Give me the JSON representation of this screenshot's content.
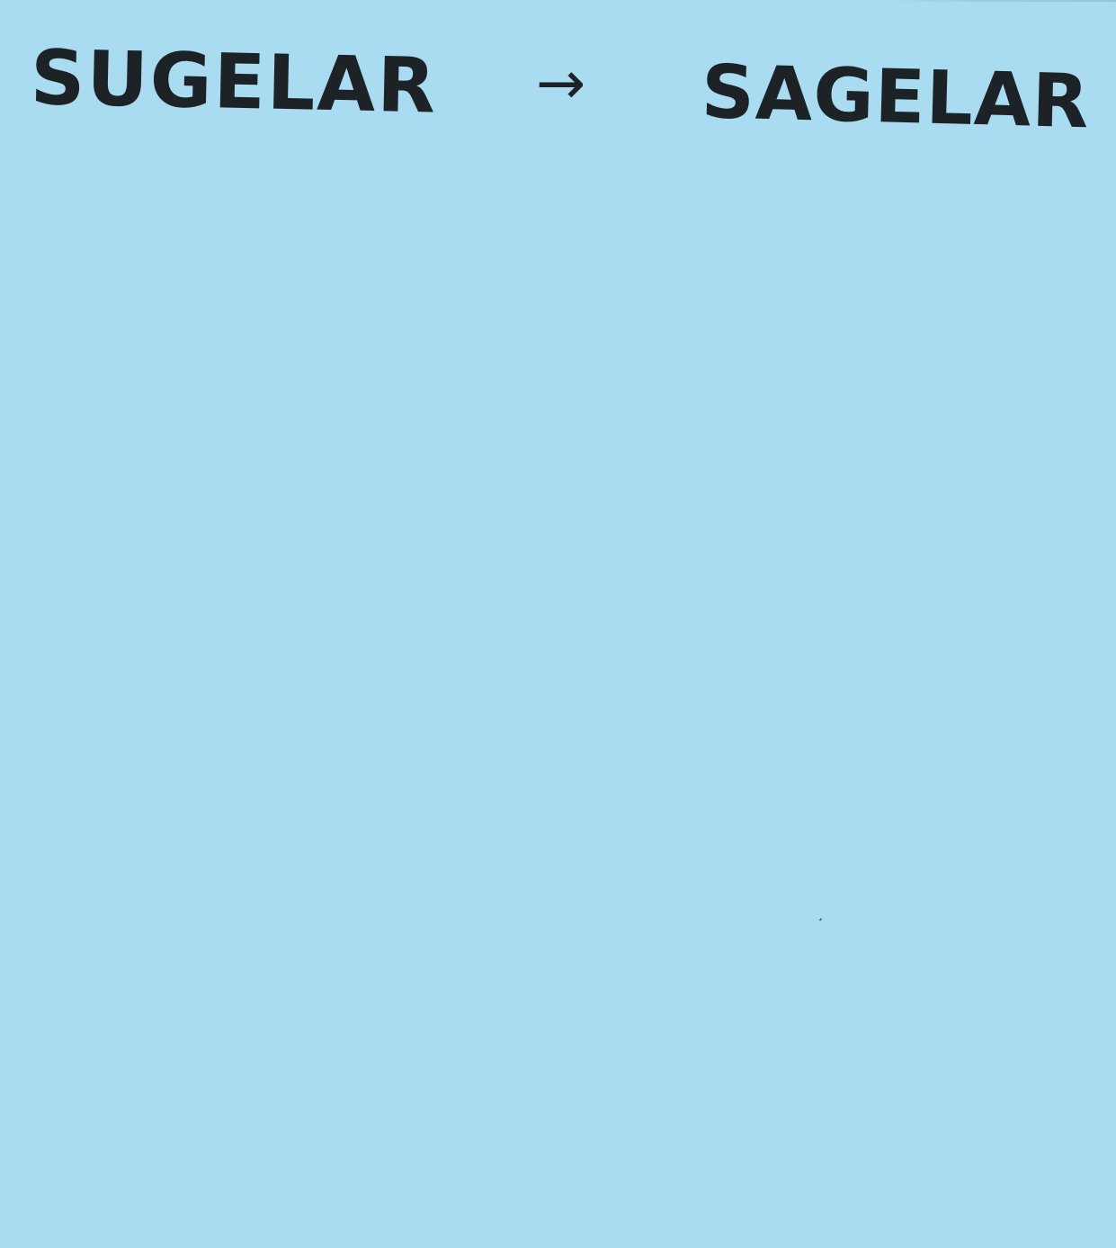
{
  "note": {
    "background_color": "#a9dbf1",
    "ink_color": "#1c2226",
    "word_from": "SUGELAR",
    "arrow_glyph": "→",
    "word_to": "SAGELAR"
  }
}
